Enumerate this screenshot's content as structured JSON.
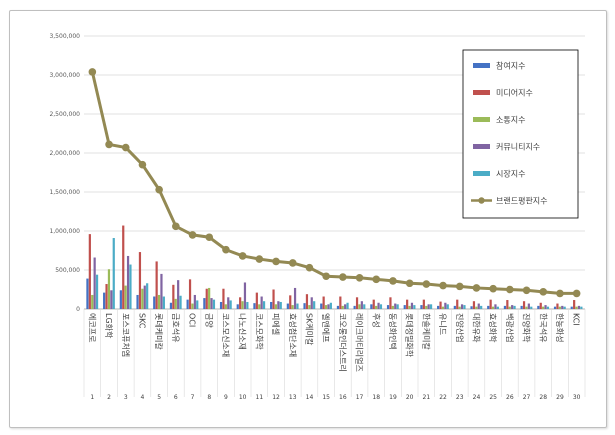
{
  "chart_data": {
    "type": "bar",
    "title": "",
    "xlabel": "",
    "ylabel": "",
    "ylim": [
      0,
      3500000
    ],
    "y_ticks": [
      "0",
      "500,000",
      "1,000,000",
      "1,500,000",
      "2,000,000",
      "2,500,000",
      "3,000,000",
      "3,500,000"
    ],
    "grid": true,
    "legend_position": "top-right",
    "categories": [
      "에코프로",
      "LG화학",
      "포스코퓨처엠",
      "SKC",
      "롯데케미칼",
      "금호석유",
      "OCI",
      "금양",
      "코스모신소재",
      "나노신소재",
      "코스모화학",
      "피에셀",
      "효성첨단소재",
      "SK케미칼",
      "엘앤에프",
      "코오롱인더스트리",
      "레이크머티리얼즈",
      "후성",
      "동성화인텍",
      "롯데정밀화학",
      "한솔케미칼",
      "유니드",
      "진양산업",
      "대한유화",
      "효성화학",
      "백광산업",
      "진양화학",
      "한국석유",
      "한농화성",
      "KCI"
    ],
    "ranks": [
      "1",
      "2",
      "3",
      "4",
      "5",
      "6",
      "7",
      "8",
      "9",
      "10",
      "11",
      "12",
      "13",
      "14",
      "15",
      "16",
      "17",
      "18",
      "19",
      "20",
      "21",
      "22",
      "23",
      "24",
      "25",
      "26",
      "27",
      "28",
      "29",
      "30"
    ],
    "series": [
      {
        "name": "참여지수",
        "kind": "bar",
        "color": "#4472c4",
        "values": [
          390000,
          210000,
          240000,
          180000,
          160000,
          80000,
          120000,
          140000,
          90000,
          60000,
          75000,
          90000,
          70000,
          75000,
          70000,
          40000,
          40000,
          60000,
          50000,
          50000,
          50000,
          40000,
          40000,
          35000,
          40000,
          40000,
          40000,
          40000,
          30000,
          30000
        ]
      },
      {
        "name": "미디어지수",
        "kind": "bar",
        "color": "#c0504d",
        "values": [
          960000,
          320000,
          1070000,
          730000,
          610000,
          310000,
          380000,
          260000,
          260000,
          150000,
          210000,
          250000,
          175000,
          190000,
          160000,
          160000,
          150000,
          120000,
          150000,
          120000,
          120000,
          95000,
          120000,
          100000,
          120000,
          115000,
          100000,
          80000,
          70000,
          115000
        ]
      },
      {
        "name": "소통지수",
        "kind": "bar",
        "color": "#9bbb59",
        "values": [
          180000,
          510000,
          300000,
          260000,
          180000,
          130000,
          70000,
          270000,
          60000,
          100000,
          60000,
          60000,
          50000,
          50000,
          50000,
          40000,
          60000,
          40000,
          40000,
          40000,
          40000,
          30000,
          30000,
          30000,
          30000,
          30000,
          30000,
          30000,
          30000,
          30000
        ]
      },
      {
        "name": "커뮤니티지수",
        "kind": "bar",
        "color": "#8064a2",
        "values": [
          660000,
          240000,
          680000,
          300000,
          450000,
          370000,
          180000,
          140000,
          150000,
          340000,
          160000,
          100000,
          270000,
          150000,
          60000,
          60000,
          100000,
          80000,
          70000,
          80000,
          60000,
          80000,
          60000,
          70000,
          60000,
          50000,
          70000,
          50000,
          40000,
          40000
        ]
      },
      {
        "name": "시장지수",
        "kind": "bar",
        "color": "#4bacc6",
        "values": [
          440000,
          910000,
          570000,
          330000,
          160000,
          170000,
          110000,
          120000,
          110000,
          90000,
          100000,
          90000,
          70000,
          100000,
          80000,
          80000,
          60000,
          60000,
          60000,
          50000,
          60000,
          60000,
          50000,
          40000,
          30000,
          40000,
          30000,
          30000,
          30000,
          30000
        ]
      },
      {
        "name": "브랜드평판지수",
        "kind": "line",
        "color": "#938953",
        "values": [
          3040000,
          2110000,
          2070000,
          1850000,
          1530000,
          1060000,
          950000,
          920000,
          760000,
          680000,
          640000,
          610000,
          590000,
          530000,
          420000,
          410000,
          400000,
          380000,
          360000,
          330000,
          320000,
          300000,
          290000,
          270000,
          260000,
          250000,
          240000,
          220000,
          200000,
          200000
        ]
      }
    ]
  }
}
